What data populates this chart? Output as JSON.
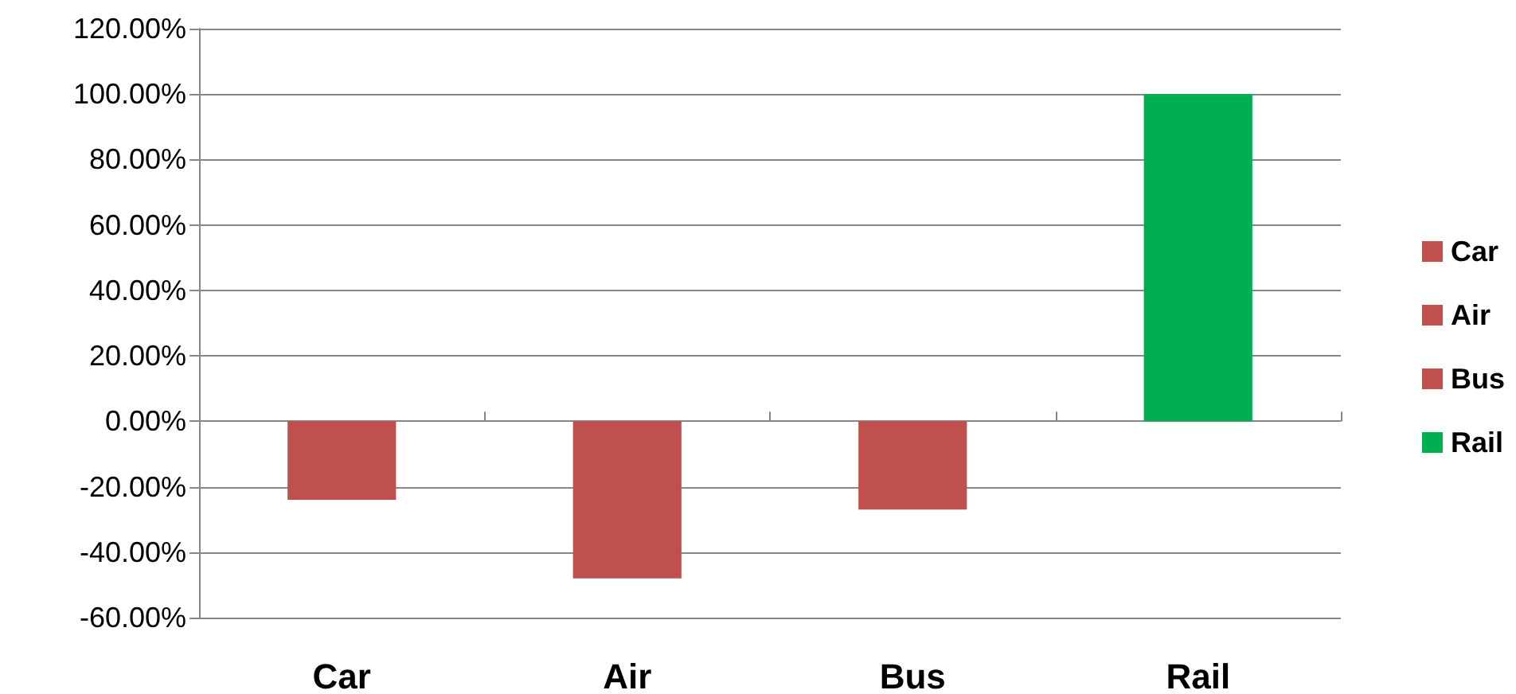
{
  "chart_data": {
    "type": "bar",
    "stacked": true,
    "categories": [
      "Car",
      "Air",
      "Bus",
      "Rail"
    ],
    "series": [
      {
        "name": "Car",
        "color": "#c0504d",
        "values": [
          -24,
          null,
          null,
          null
        ]
      },
      {
        "name": "Air",
        "color": "#c0504d",
        "values": [
          null,
          -48,
          null,
          null
        ]
      },
      {
        "name": "Bus",
        "color": "#c0504d",
        "values": [
          null,
          null,
          -27,
          null
        ]
      },
      {
        "name": "Rail",
        "color": "#00b050",
        "values": [
          null,
          null,
          null,
          100
        ]
      }
    ],
    "ylim": [
      -60,
      120
    ],
    "yticks": [
      {
        "value": -60,
        "label": "-60.00%"
      },
      {
        "value": -40,
        "label": "-40.00%"
      },
      {
        "value": -20,
        "label": "-20.00%"
      },
      {
        "value": 0,
        "label": "0.00%"
      },
      {
        "value": 20,
        "label": "20.00%"
      },
      {
        "value": 40,
        "label": "40.00%"
      },
      {
        "value": 60,
        "label": "60.00%"
      },
      {
        "value": 80,
        "label": "80.00%"
      },
      {
        "value": 100,
        "label": "100.00%"
      },
      {
        "value": 120,
        "label": "120.00%"
      }
    ],
    "grid": "y",
    "legend": "right"
  }
}
